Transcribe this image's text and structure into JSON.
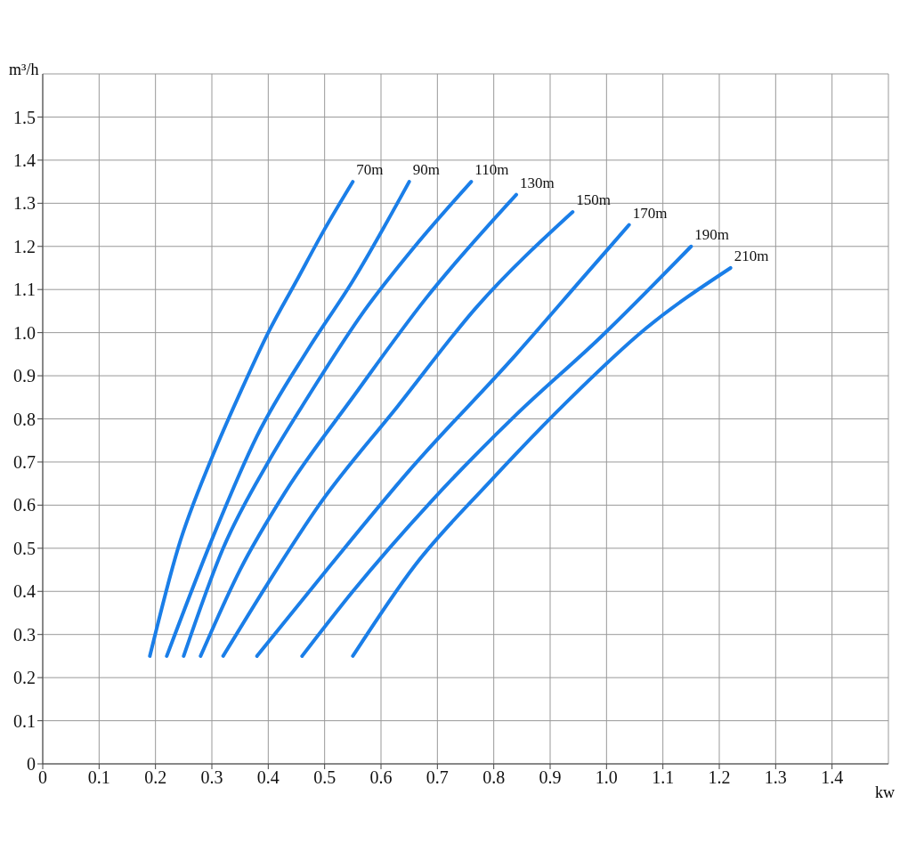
{
  "chart_data": {
    "type": "line",
    "xlabel": "kw",
    "ylabel": "m³/h",
    "xlim": [
      0,
      1.5
    ],
    "ylim": [
      0,
      1.6
    ],
    "xticks": [
      0,
      0.1,
      0.2,
      0.3,
      0.4,
      0.5,
      0.6,
      0.7,
      0.8,
      0.9,
      {
        "value": 1,
        "label": "1.0"
      },
      1.1,
      1.2,
      1.3,
      1.4
    ],
    "yticks": [
      0,
      0.1,
      0.2,
      0.3,
      0.4,
      0.5,
      0.6,
      0.7,
      0.8,
      0.9,
      {
        "value": 1,
        "label": "1.0"
      },
      1.1,
      1.2,
      1.3,
      1.4,
      1.5
    ],
    "grid": true,
    "legend": false,
    "marker": "none",
    "line_style": "solid",
    "series": [
      {
        "name": "70m",
        "color": "#1a7ee8",
        "x": [
          0.19,
          0.24,
          0.3,
          0.35,
          0.4,
          0.45,
          0.5,
          0.55
        ],
        "values": [
          0.25,
          0.5,
          0.71,
          0.86,
          1.0,
          1.12,
          1.24,
          1.35
        ]
      },
      {
        "name": "90m",
        "color": "#1a7ee8",
        "x": [
          0.22,
          0.3,
          0.38,
          0.47,
          0.55,
          0.65
        ],
        "values": [
          0.25,
          0.52,
          0.76,
          0.96,
          1.12,
          1.35
        ]
      },
      {
        "name": "110m",
        "color": "#1a7ee8",
        "x": [
          0.25,
          0.32,
          0.4,
          0.47,
          0.57,
          0.66,
          0.76
        ],
        "values": [
          0.25,
          0.5,
          0.7,
          0.85,
          1.05,
          1.2,
          1.35
        ]
      },
      {
        "name": "130m",
        "color": "#1a7ee8",
        "x": [
          0.28,
          0.35,
          0.43,
          0.55,
          0.68,
          0.84
        ],
        "values": [
          0.25,
          0.45,
          0.63,
          0.85,
          1.08,
          1.32
        ]
      },
      {
        "name": "150m",
        "color": "#1a7ee8",
        "x": [
          0.32,
          0.4,
          0.49,
          0.63,
          0.77,
          0.94
        ],
        "values": [
          0.25,
          0.42,
          0.6,
          0.83,
          1.06,
          1.28
        ]
      },
      {
        "name": "170m",
        "color": "#1a7ee8",
        "x": [
          0.38,
          0.51,
          0.65,
          0.84,
          0.96,
          1.04
        ],
        "values": [
          0.25,
          0.46,
          0.68,
          0.95,
          1.13,
          1.25
        ]
      },
      {
        "name": "190m",
        "color": "#1a7ee8",
        "x": [
          0.46,
          0.55,
          0.69,
          0.84,
          0.99,
          1.15
        ],
        "values": [
          0.25,
          0.4,
          0.61,
          0.81,
          0.99,
          1.2
        ]
      },
      {
        "name": "210m",
        "color": "#1a7ee8",
        "x": [
          0.55,
          0.66,
          0.79,
          0.93,
          1.07,
          1.22
        ],
        "values": [
          0.25,
          0.46,
          0.65,
          0.84,
          1.01,
          1.15
        ]
      }
    ]
  }
}
